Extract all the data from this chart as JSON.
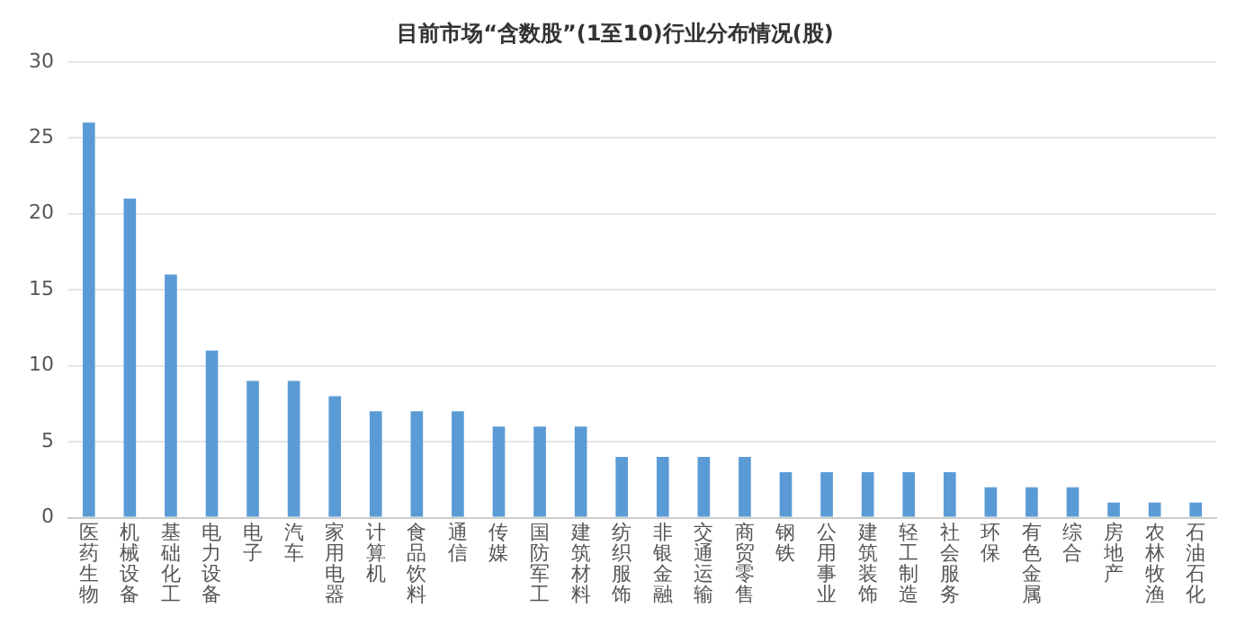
{
  "chart_data": {
    "type": "bar",
    "title": "目前市场“含数股”(1至10)行业分布情况(股)",
    "categories": [
      "医药生物",
      "机械设备",
      "基础化工",
      "电力设备",
      "电子",
      "汽车",
      "家用电器",
      "计算机",
      "食品饮料",
      "通信",
      "传媒",
      "国防军工",
      "建筑材料",
      "纺织服饰",
      "非银金融",
      "交通运输",
      "商贸零售",
      "钢铁",
      "公用事业",
      "建筑装饰",
      "轻工制造",
      "社会服务",
      "环保",
      "有色金属",
      "综合",
      "房地产",
      "农林牧渔",
      "石油石化"
    ],
    "values": [
      26,
      21,
      16,
      11,
      9,
      9,
      8,
      7,
      7,
      7,
      6,
      6,
      6,
      4,
      4,
      4,
      4,
      3,
      3,
      3,
      3,
      3,
      2,
      2,
      2,
      1,
      1,
      1
    ],
    "color": "#5b9bd5",
    "ylim": [
      0,
      30
    ],
    "yticks": [
      0,
      5,
      10,
      15,
      20,
      25,
      30
    ],
    "grid": "y",
    "legend": false
  }
}
